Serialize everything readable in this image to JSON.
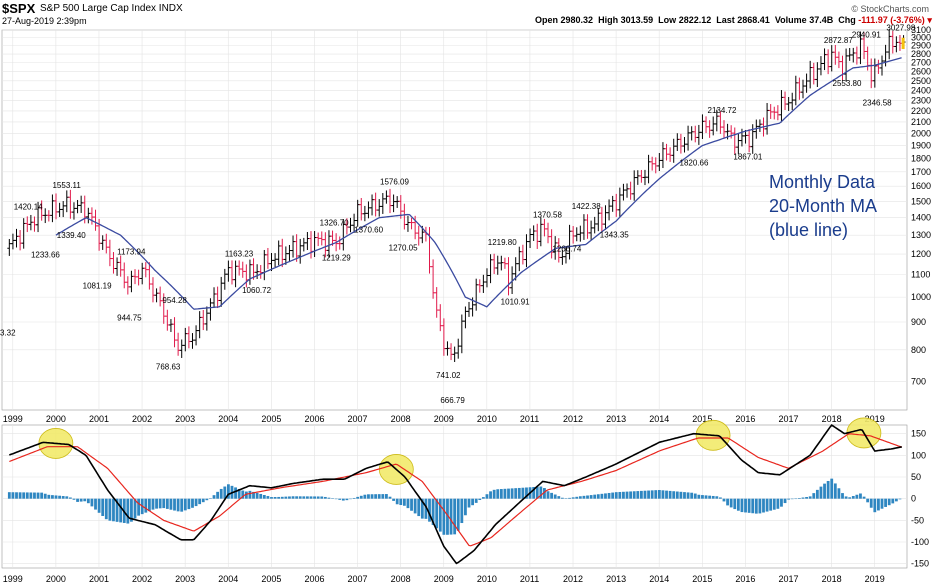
{
  "header": {
    "symbol": "$SPX",
    "name": "S&P 500 Large Cap Index",
    "exchange": "INDX",
    "date": "27-Aug-2019 2:39pm",
    "brand": "© StockCharts.com",
    "open_label": "Open",
    "open": "2980.32",
    "high_label": "High",
    "high": "3013.59",
    "low_label": "Low",
    "low": "2822.12",
    "last_label": "Last",
    "last": "2868.41",
    "volume_label": "Volume",
    "volume": "37.4B",
    "chg_label": "Chg",
    "chg": "-111.97 (-3.76%)"
  },
  "note": {
    "line1": "Monthly Data",
    "line2": "20-Month MA",
    "line3": "(blue line)"
  },
  "colors": {
    "up": "#000000",
    "down": "#e0194a",
    "ma": "#3a4aa0",
    "macd": "#000000",
    "signal": "#e8261e",
    "hist": "#2e86c1",
    "highlight": "#f2ea6b",
    "note": "#1a3c8c"
  },
  "chart_data": [
    {
      "type": "line",
      "description_of_marks": "monthly OHLC bars with 20-month moving average",
      "log_scale": true,
      "ylim": [
        620,
        3100
      ],
      "grid": true,
      "x_tick_labels": [
        "1999",
        "2000",
        "2001",
        "2002",
        "2003",
        "2004",
        "2005",
        "2006",
        "2007",
        "2008",
        "2009",
        "2010",
        "2011",
        "2012",
        "2013",
        "2014",
        "2015",
        "2016",
        "2017",
        "2018",
        "2019"
      ],
      "y_tick_labels": [
        700,
        800,
        900,
        1000,
        1100,
        1200,
        1300,
        1400,
        1500,
        1600,
        1700,
        1800,
        1900,
        2000,
        2100,
        2200,
        2300,
        2400,
        2500,
        2600,
        2700,
        2800,
        2900,
        3000,
        3100
      ],
      "close_anchors": [
        {
          "t": 1998.9,
          "v": 1230
        },
        {
          "t": 1999.5,
          "v": 1400
        },
        {
          "t": 2000.2,
          "v": 1480
        },
        {
          "t": 2000.7,
          "v": 1450
        },
        {
          "t": 2001.2,
          "v": 1200
        },
        {
          "t": 2001.7,
          "v": 1050
        },
        {
          "t": 2002.0,
          "v": 1130
        },
        {
          "t": 2002.6,
          "v": 900
        },
        {
          "t": 2002.8,
          "v": 810
        },
        {
          "t": 2003.2,
          "v": 850
        },
        {
          "t": 2003.7,
          "v": 1000
        },
        {
          "t": 2004.0,
          "v": 1120
        },
        {
          "t": 2004.6,
          "v": 1110
        },
        {
          "t": 2005.0,
          "v": 1180
        },
        {
          "t": 2006.0,
          "v": 1270
        },
        {
          "t": 2006.5,
          "v": 1260
        },
        {
          "t": 2007.0,
          "v": 1430
        },
        {
          "t": 2007.8,
          "v": 1520
        },
        {
          "t": 2008.2,
          "v": 1350
        },
        {
          "t": 2008.6,
          "v": 1280
        },
        {
          "t": 2008.8,
          "v": 950
        },
        {
          "t": 2009.0,
          "v": 830
        },
        {
          "t": 2009.2,
          "v": 760
        },
        {
          "t": 2009.5,
          "v": 930
        },
        {
          "t": 2010.0,
          "v": 1110
        },
        {
          "t": 2010.3,
          "v": 1180
        },
        {
          "t": 2010.5,
          "v": 1070
        },
        {
          "t": 2011.0,
          "v": 1290
        },
        {
          "t": 2011.3,
          "v": 1340
        },
        {
          "t": 2011.7,
          "v": 1170
        },
        {
          "t": 2012.0,
          "v": 1310
        },
        {
          "t": 2012.5,
          "v": 1360
        },
        {
          "t": 2013.0,
          "v": 1500
        },
        {
          "t": 2014.0,
          "v": 1800
        },
        {
          "t": 2015.0,
          "v": 2050
        },
        {
          "t": 2015.4,
          "v": 2100
        },
        {
          "t": 2015.7,
          "v": 1940
        },
        {
          "t": 2016.1,
          "v": 1960
        },
        {
          "t": 2016.5,
          "v": 2150
        },
        {
          "t": 2017.0,
          "v": 2300
        },
        {
          "t": 2018.0,
          "v": 2800
        },
        {
          "t": 2018.2,
          "v": 2650
        },
        {
          "t": 2018.7,
          "v": 2910
        },
        {
          "t": 2018.95,
          "v": 2510
        },
        {
          "t": 2019.3,
          "v": 2900
        },
        {
          "t": 2019.5,
          "v": 2980
        },
        {
          "t": 2019.65,
          "v": 2868
        }
      ],
      "ma_anchors": [
        {
          "t": 2000.0,
          "v": 1300
        },
        {
          "t": 2000.7,
          "v": 1400
        },
        {
          "t": 2001.5,
          "v": 1300
        },
        {
          "t": 2002.3,
          "v": 1120
        },
        {
          "t": 2003.2,
          "v": 950
        },
        {
          "t": 2003.8,
          "v": 960
        },
        {
          "t": 2004.5,
          "v": 1080
        },
        {
          "t": 2005.5,
          "v": 1170
        },
        {
          "t": 2006.5,
          "v": 1260
        },
        {
          "t": 2007.5,
          "v": 1400
        },
        {
          "t": 2008.2,
          "v": 1420
        },
        {
          "t": 2008.8,
          "v": 1260
        },
        {
          "t": 2009.5,
          "v": 1000
        },
        {
          "t": 2010.0,
          "v": 960
        },
        {
          "t": 2010.8,
          "v": 1110
        },
        {
          "t": 2011.6,
          "v": 1230
        },
        {
          "t": 2012.3,
          "v": 1250
        },
        {
          "t": 2013.0,
          "v": 1380
        },
        {
          "t": 2014.0,
          "v": 1650
        },
        {
          "t": 2015.0,
          "v": 1900
        },
        {
          "t": 2016.0,
          "v": 2020
        },
        {
          "t": 2016.8,
          "v": 2090
        },
        {
          "t": 2017.5,
          "v": 2350
        },
        {
          "t": 2018.5,
          "v": 2640
        },
        {
          "t": 2019.0,
          "v": 2670
        },
        {
          "t": 2019.65,
          "v": 2760
        }
      ],
      "annotations": [
        {
          "t": 2000.2,
          "v": 1553.11,
          "text": "1553.11",
          "pos": "above"
        },
        {
          "t": 1999.3,
          "v": 1420.14,
          "text": "1420.14",
          "pos": "above"
        },
        {
          "t": 2000.3,
          "v": 1339.4,
          "text": "1339.40",
          "pos": "below"
        },
        {
          "t": 1999.7,
          "v": 1233.66,
          "text": "1233.66",
          "pos": "below"
        },
        {
          "t": 2001.7,
          "v": 1173.94,
          "text": "1173.94",
          "pos": "above"
        },
        {
          "t": 2000.9,
          "v": 1081.19,
          "text": "1081.19",
          "pos": "below"
        },
        {
          "t": 2001.7,
          "v": 944.75,
          "text": "944.75",
          "pos": "below"
        },
        {
          "t": 2002.75,
          "v": 954.28,
          "text": "954.28",
          "pos": "above"
        },
        {
          "t": 2002.6,
          "v": 768.63,
          "text": "768.63",
          "pos": "below"
        },
        {
          "t": 2004.2,
          "v": 1163.23,
          "text": "1163.23",
          "pos": "above"
        },
        {
          "t": 2004.6,
          "v": 1060.72,
          "text": "1060.72",
          "pos": "below"
        },
        {
          "t": 2006.4,
          "v": 1326.7,
          "text": "1326.70",
          "pos": "above"
        },
        {
          "t": 2006.45,
          "v": 1219.29,
          "text": "1219.29",
          "pos": "below"
        },
        {
          "t": 2007.8,
          "v": 1576.09,
          "text": "1576.09",
          "pos": "above"
        },
        {
          "t": 2007.2,
          "v": 1370.6,
          "text": "1370.60",
          "pos": "below"
        },
        {
          "t": 2008.0,
          "v": 1270.05,
          "text": "1270.05",
          "pos": "below"
        },
        {
          "t": 2009.1,
          "v": 741.02,
          "text": "741.02",
          "pos": "below"
        },
        {
          "t": 2009.2,
          "v": 666.79,
          "text": "666.79",
          "pos": "below"
        },
        {
          "t": 2010.3,
          "v": 1219.8,
          "text": "1219.80",
          "pos": "above"
        },
        {
          "t": 2010.6,
          "v": 1010.91,
          "text": "1010.91",
          "pos": "below"
        },
        {
          "t": 2011.35,
          "v": 1370.58,
          "text": "1370.58",
          "pos": "above"
        },
        {
          "t": 2012.25,
          "v": 1422.38,
          "text": "1422.38",
          "pos": "above"
        },
        {
          "t": 2011.8,
          "v": 1266.74,
          "text": "1266.74",
          "pos": "below"
        },
        {
          "t": 2012.9,
          "v": 1343.35,
          "text": "1343.35",
          "pos": "below"
        },
        {
          "t": 2015.4,
          "v": 2134.72,
          "text": "2134.72",
          "pos": "above"
        },
        {
          "t": 2014.75,
          "v": 1820.66,
          "text": "1820.66",
          "pos": "below"
        },
        {
          "t": 2016.0,
          "v": 1867.01,
          "text": "1867.01",
          "pos": "below"
        },
        {
          "t": 2018.1,
          "v": 2872.87,
          "text": "2872.87",
          "pos": "above"
        },
        {
          "t": 2018.75,
          "v": 2940.91,
          "text": "2940.91",
          "pos": "above"
        },
        {
          "t": 2018.3,
          "v": 2553.8,
          "text": "2553.80",
          "pos": "below"
        },
        {
          "t": 2019.0,
          "v": 2346.58,
          "text": "2346.58",
          "pos": "below"
        },
        {
          "t": 2019.55,
          "v": 3027.98,
          "text": "3027.98",
          "pos": "above"
        }
      ]
    },
    {
      "type": "line",
      "description_of_marks": "MACD panel: black MACD line, red signal line, blue histogram",
      "ylim": [
        -160,
        170
      ],
      "y_tick_labels": [
        150,
        100,
        50,
        0,
        -50,
        -100,
        -150
      ],
      "x_tick_labels": [
        "1999",
        "2000",
        "2001",
        "2002",
        "2003",
        "2004",
        "2005",
        "2006",
        "2007",
        "2008",
        "2009",
        "2010",
        "2011",
        "2012",
        "2013",
        "2014",
        "2015",
        "2016",
        "2017",
        "2018",
        "2019"
      ],
      "macd_anchors": [
        {
          "t": 1998.9,
          "v": 100
        },
        {
          "t": 1999.7,
          "v": 130
        },
        {
          "t": 2000.3,
          "v": 125
        },
        {
          "t": 2000.7,
          "v": 100
        },
        {
          "t": 2001.2,
          "v": 20
        },
        {
          "t": 2001.7,
          "v": -45
        },
        {
          "t": 2002.3,
          "v": -60
        },
        {
          "t": 2002.9,
          "v": -95
        },
        {
          "t": 2003.2,
          "v": -95
        },
        {
          "t": 2003.6,
          "v": -50
        },
        {
          "t": 2004.0,
          "v": 10
        },
        {
          "t": 2004.5,
          "v": 30
        },
        {
          "t": 2005.0,
          "v": 25
        },
        {
          "t": 2005.5,
          "v": 35
        },
        {
          "t": 2006.2,
          "v": 45
        },
        {
          "t": 2006.7,
          "v": 45
        },
        {
          "t": 2007.2,
          "v": 70
        },
        {
          "t": 2007.7,
          "v": 85
        },
        {
          "t": 2008.1,
          "v": 50
        },
        {
          "t": 2008.6,
          "v": -20
        },
        {
          "t": 2009.0,
          "v": -110
        },
        {
          "t": 2009.3,
          "v": -150
        },
        {
          "t": 2009.7,
          "v": -120
        },
        {
          "t": 2010.2,
          "v": -60
        },
        {
          "t": 2010.8,
          "v": -5
        },
        {
          "t": 2011.3,
          "v": 40
        },
        {
          "t": 2011.8,
          "v": 30
        },
        {
          "t": 2012.3,
          "v": 50
        },
        {
          "t": 2013.0,
          "v": 80
        },
        {
          "t": 2014.0,
          "v": 130
        },
        {
          "t": 2014.8,
          "v": 150
        },
        {
          "t": 2015.4,
          "v": 145
        },
        {
          "t": 2015.9,
          "v": 90
        },
        {
          "t": 2016.3,
          "v": 60
        },
        {
          "t": 2016.8,
          "v": 55
        },
        {
          "t": 2017.5,
          "v": 100
        },
        {
          "t": 2018.0,
          "v": 170
        },
        {
          "t": 2018.3,
          "v": 150
        },
        {
          "t": 2018.7,
          "v": 160
        },
        {
          "t": 2019.0,
          "v": 110
        },
        {
          "t": 2019.4,
          "v": 115
        },
        {
          "t": 2019.65,
          "v": 120
        }
      ],
      "signal_anchors": [
        {
          "t": 1998.9,
          "v": 85
        },
        {
          "t": 1999.8,
          "v": 120
        },
        {
          "t": 2000.5,
          "v": 120
        },
        {
          "t": 2001.2,
          "v": 70
        },
        {
          "t": 2001.9,
          "v": -10
        },
        {
          "t": 2002.5,
          "v": -50
        },
        {
          "t": 2003.2,
          "v": -75
        },
        {
          "t": 2003.8,
          "v": -40
        },
        {
          "t": 2004.4,
          "v": 10
        },
        {
          "t": 2005.2,
          "v": 25
        },
        {
          "t": 2006.2,
          "v": 40
        },
        {
          "t": 2007.2,
          "v": 60
        },
        {
          "t": 2007.9,
          "v": 80
        },
        {
          "t": 2008.5,
          "v": 40
        },
        {
          "t": 2009.1,
          "v": -40
        },
        {
          "t": 2009.6,
          "v": -110
        },
        {
          "t": 2010.1,
          "v": -90
        },
        {
          "t": 2010.8,
          "v": -30
        },
        {
          "t": 2011.4,
          "v": 20
        },
        {
          "t": 2012.2,
          "v": 40
        },
        {
          "t": 2013.0,
          "v": 65
        },
        {
          "t": 2014.0,
          "v": 110
        },
        {
          "t": 2014.9,
          "v": 140
        },
        {
          "t": 2015.6,
          "v": 140
        },
        {
          "t": 2016.3,
          "v": 95
        },
        {
          "t": 2017.0,
          "v": 70
        },
        {
          "t": 2017.8,
          "v": 110
        },
        {
          "t": 2018.4,
          "v": 150
        },
        {
          "t": 2018.9,
          "v": 145
        },
        {
          "t": 2019.65,
          "v": 118
        }
      ],
      "highlight_years": [
        2000.0,
        2007.9,
        2015.25,
        2018.75
      ]
    }
  ]
}
